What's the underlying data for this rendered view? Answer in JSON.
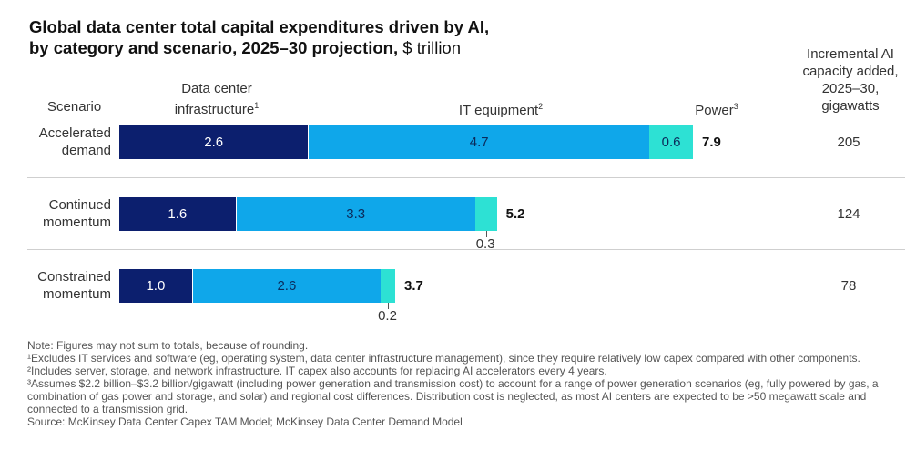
{
  "title": {
    "line1": "Global data center total capital expenditures driven by AI,",
    "line2": "by category and scenario, 2025–30 projection,",
    "unit": "$ trillion"
  },
  "headers": {
    "scenario": "Scenario",
    "dci_line1": "Data center",
    "dci_line2": "infrastructure",
    "dci_sup": "1",
    "it": "IT equipment",
    "it_sup": "2",
    "power": "Power",
    "power_sup": "3",
    "inc_line1": "Incremental AI",
    "inc_line2": "capacity added,",
    "inc_line3": "2025–30,",
    "inc_line4": "gigawatts"
  },
  "chart_data": {
    "type": "bar",
    "orientation": "horizontal",
    "stacked": true,
    "categories": [
      "Accelerated demand",
      "Continued momentum",
      "Constrained momentum"
    ],
    "category_lines": [
      [
        "Accelerated",
        "demand"
      ],
      [
        "Continued",
        "momentum"
      ],
      [
        "Constrained",
        "momentum"
      ]
    ],
    "series": [
      {
        "name": "Data center infrastructure",
        "values": [
          2.6,
          1.6,
          1.0
        ],
        "labels": [
          "2.6",
          "1.6",
          "1.0"
        ],
        "color": "#0c1f6e"
      },
      {
        "name": "IT equipment",
        "values": [
          4.7,
          3.3,
          2.6
        ],
        "labels": [
          "4.7",
          "3.3",
          "2.6"
        ],
        "color": "#0fa7ea"
      },
      {
        "name": "Power",
        "values": [
          0.6,
          0.3,
          0.2
        ],
        "labels": [
          "0.6",
          "0.3",
          "0.2"
        ],
        "color": "#2de1d4"
      }
    ],
    "totals": [
      "7.9",
      "5.2",
      "3.7"
    ],
    "gigawatts": [
      "205",
      "124",
      "78"
    ],
    "xlim": [
      0,
      7.9
    ]
  },
  "notes": {
    "n0": "Note: Figures may not sum to totals, because of rounding.",
    "n1": "¹Excludes IT services and software (eg, operating system, data center infrastructure management), since they require relatively low capex compared with other components.",
    "n2": "²Includes server, storage, and network infrastructure. IT capex also accounts for replacing AI accelerators every 4 years.",
    "n3": "³Assumes $2.2 billion–$3.2 billion/gigawatt (including power generation and transmission cost) to account for a range of power generation scenarios (eg, fully powered by gas, a combination of gas power and storage, and solar) and regional cost differences. Distribution cost is neglected, as most AI centers are expected to be >50 megawatt scale and connected to a transmission grid.",
    "source": "Source: McKinsey Data Center Capex TAM Model; McKinsey Data Center Demand Model"
  }
}
